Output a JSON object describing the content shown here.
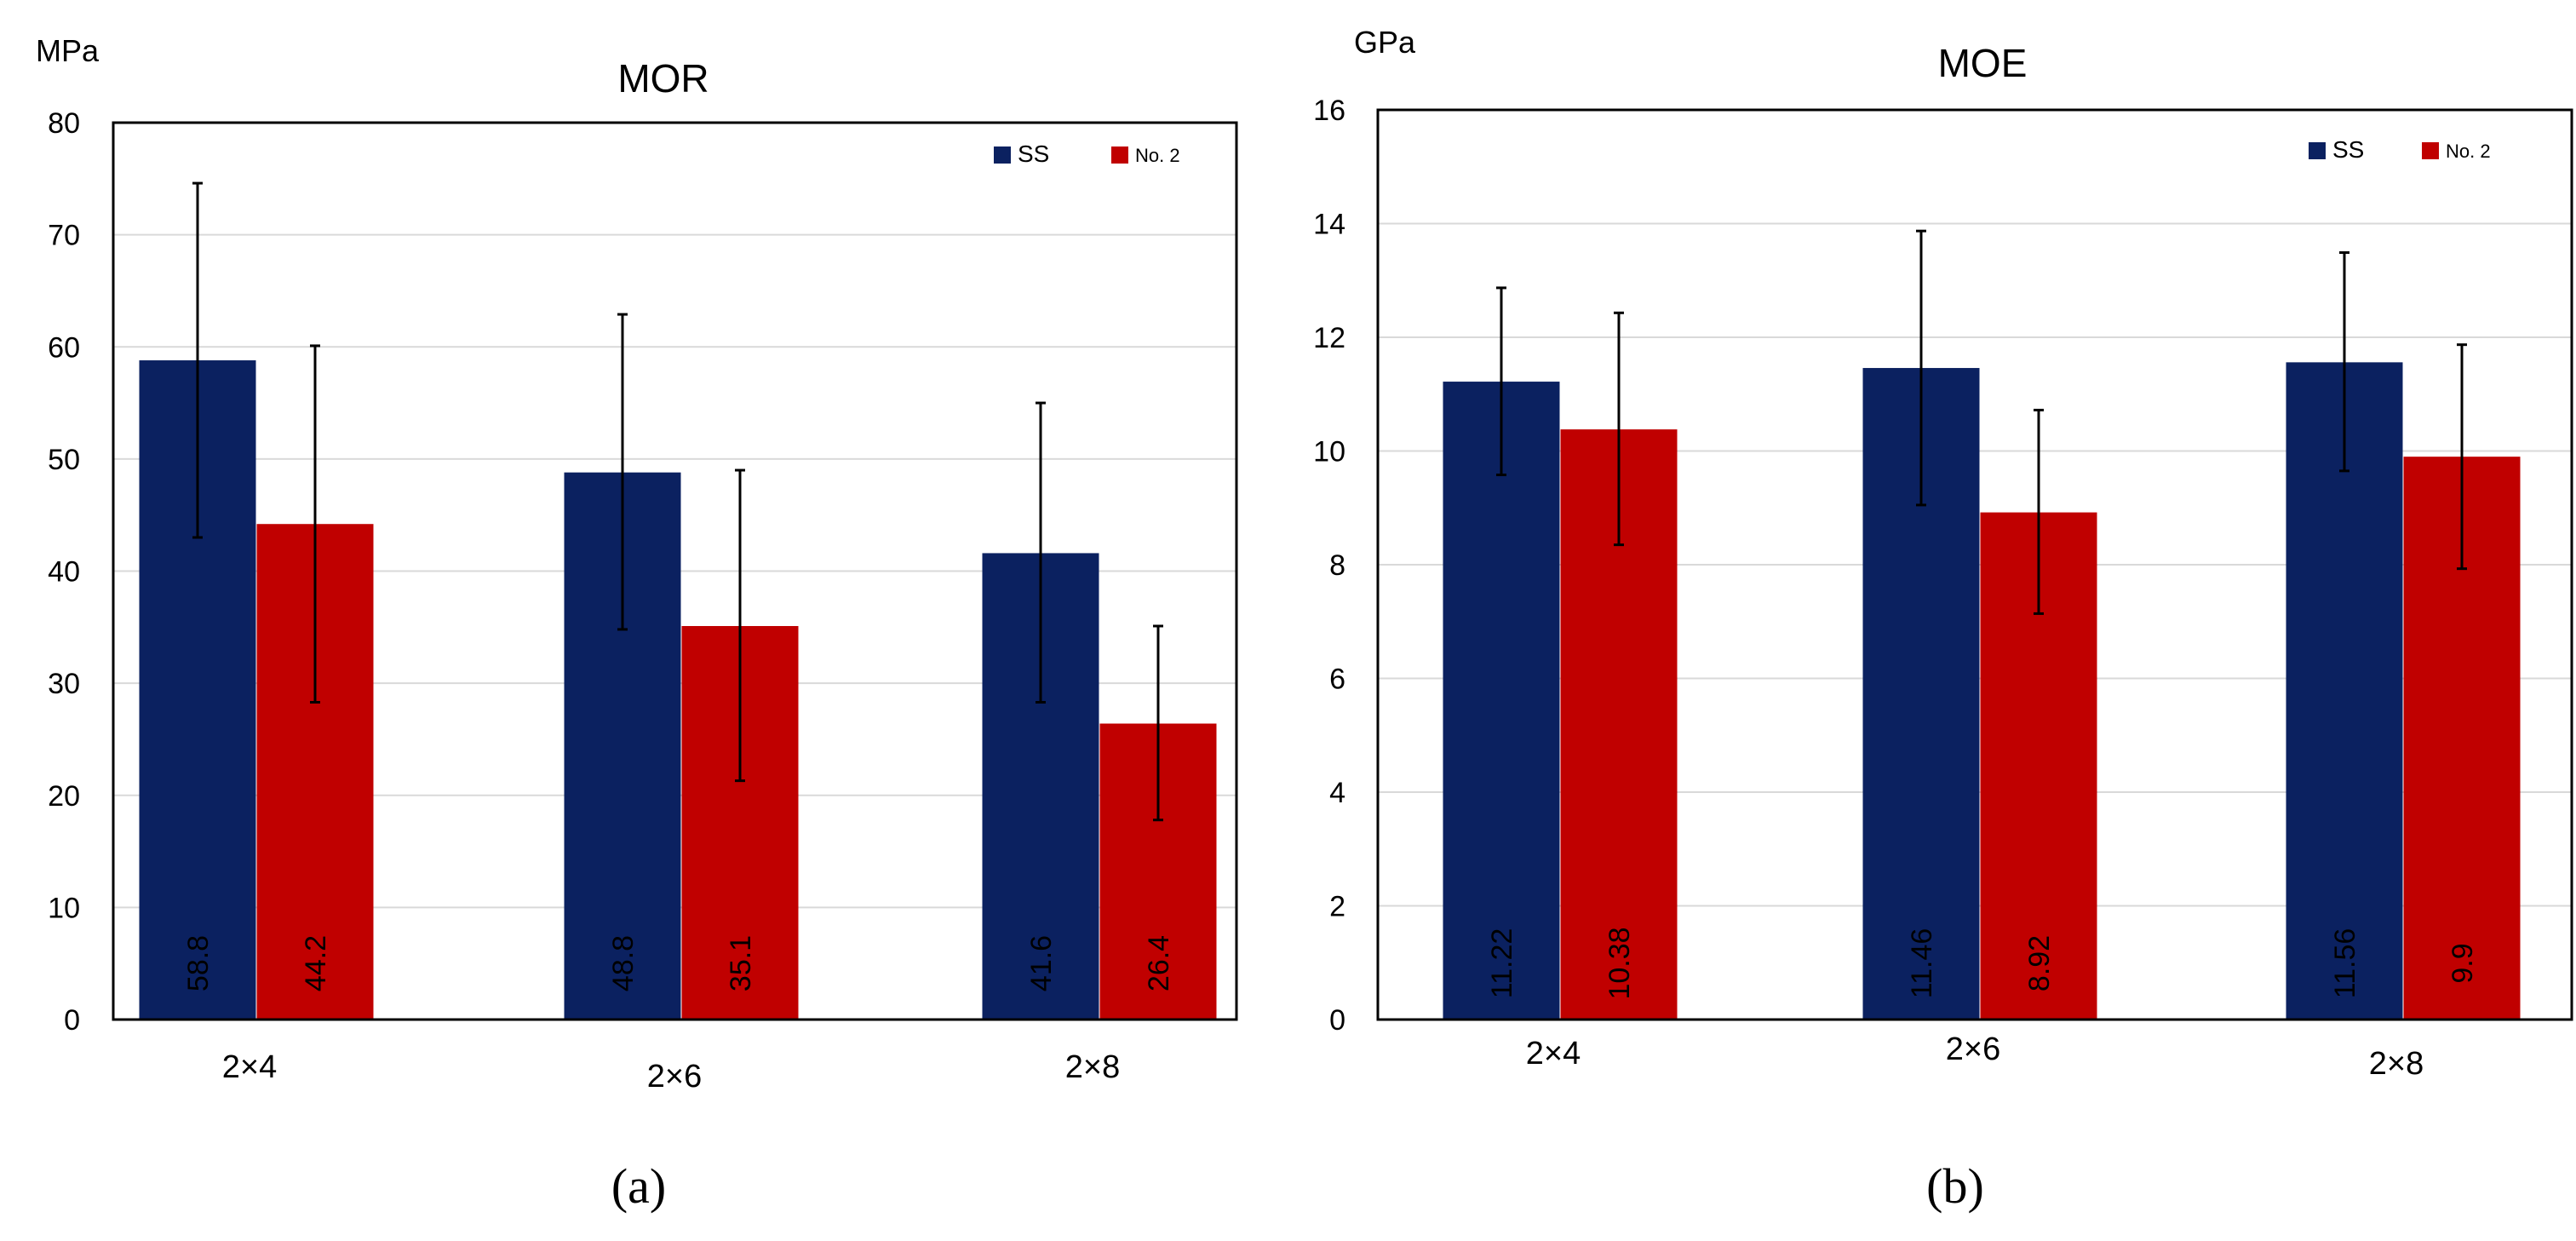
{
  "figure": {
    "captions": [
      "(a)",
      "(b)"
    ]
  },
  "chart_data": [
    {
      "type": "bar",
      "title": "MOR",
      "unit": "MPa",
      "categories": [
        "2×4",
        "2×6",
        "2×8"
      ],
      "ylim": [
        0,
        80
      ],
      "yticks": [
        0,
        10,
        20,
        30,
        40,
        50,
        60,
        70,
        80
      ],
      "grid": true,
      "legend_position": "top-right",
      "series": [
        {
          "name": "SS",
          "color": "#0b2160",
          "values": [
            58.8,
            48.8,
            41.6
          ],
          "value_labels": [
            "58.8",
            "48.8",
            "41.6"
          ],
          "error_low": [
            43.0,
            34.8,
            28.3
          ],
          "error_high": [
            74.6,
            62.9,
            55.0
          ]
        },
        {
          "name": "No. 2",
          "color": "#c00000",
          "values": [
            44.2,
            35.1,
            26.4
          ],
          "value_labels": [
            "44.2",
            "35.1",
            "26.4"
          ],
          "error_low": [
            28.3,
            21.3,
            17.8
          ],
          "error_high": [
            60.1,
            49.0,
            35.1
          ]
        }
      ],
      "data_label_color": "#ffff00"
    },
    {
      "type": "bar",
      "title": "MOE",
      "unit": "GPa",
      "categories": [
        "2×4",
        "2×6",
        "2×8"
      ],
      "ylim": [
        0,
        16
      ],
      "yticks": [
        0,
        2,
        4,
        6,
        8,
        10,
        12,
        14,
        16
      ],
      "grid": true,
      "legend_position": "top-right",
      "series": [
        {
          "name": "SS",
          "color": "#0b2160",
          "values": [
            11.22,
            11.46,
            11.56
          ],
          "value_labels": [
            "11.22",
            "11.46",
            "11.56"
          ],
          "error_low": [
            9.58,
            9.05,
            9.65
          ],
          "error_high": [
            12.87,
            13.87,
            13.49
          ]
        },
        {
          "name": "No. 2",
          "color": "#c00000",
          "values": [
            10.38,
            8.92,
            9.9
          ],
          "value_labels": [
            "10.38",
            "8.92",
            "9.9"
          ],
          "error_low": [
            8.35,
            7.14,
            7.93
          ],
          "error_high": [
            12.43,
            10.72,
            11.87
          ]
        }
      ],
      "data_label_color": "#ffff00"
    }
  ]
}
